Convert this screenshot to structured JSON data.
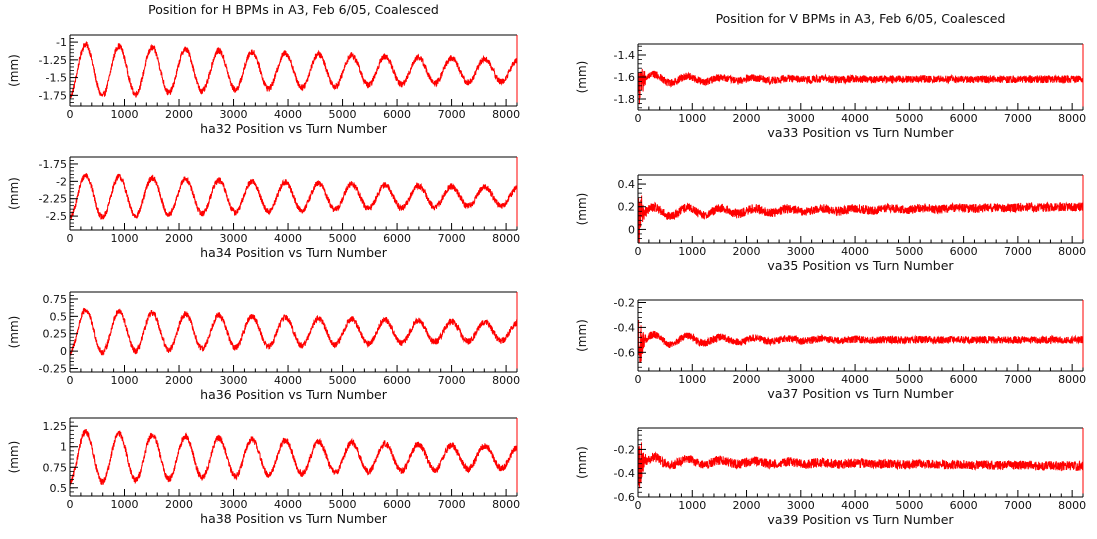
{
  "page": {
    "left_title": "Position for H BPMs in A3, Feb 6/05, Coalesced",
    "right_title": "Position for V BPMs in A3, Feb 6/05, Coalesced"
  },
  "colors": {
    "trace": "#ff0000",
    "frame": "#000000",
    "background": "#ffffff"
  },
  "chart_data": [
    {
      "type": "line",
      "column": "left",
      "row": 0,
      "xlabel": "ha32 Position vs Turn Number",
      "ylabel": "(mm)",
      "xlim": [
        0,
        8200
      ],
      "ylim": [
        -1.9,
        -0.9
      ],
      "xticks": [
        0,
        1000,
        2000,
        3000,
        4000,
        5000,
        6000,
        7000,
        8000
      ],
      "yticks": [
        -1.75,
        -1.5,
        -1.25,
        -1
      ],
      "ytick_labels": [
        "-1.75",
        "-1.5",
        "-1.25",
        "-1"
      ],
      "baseline": -1.4,
      "osc_amplitude": 0.38,
      "osc_period": 610,
      "osc_decay": 9000,
      "noise": 0.045,
      "series": [
        {
          "name": "ha32"
        }
      ]
    },
    {
      "type": "line",
      "column": "left",
      "row": 1,
      "xlabel": "ha34 Position vs Turn Number",
      "ylabel": "(mm)",
      "xlim": [
        0,
        8200
      ],
      "ylim": [
        -2.7,
        -1.65
      ],
      "xticks": [
        0,
        1000,
        2000,
        3000,
        4000,
        5000,
        6000,
        7000,
        8000
      ],
      "yticks": [
        -2.5,
        -2.25,
        -2,
        -1.75
      ],
      "ytick_labels": [
        "-2.5",
        "-2.25",
        "-2",
        "-1.75"
      ],
      "baseline": -2.22,
      "osc_amplitude": 0.32,
      "osc_period": 610,
      "osc_decay": 9000,
      "noise": 0.045,
      "series": [
        {
          "name": "ha34"
        }
      ]
    },
    {
      "type": "line",
      "column": "left",
      "row": 2,
      "xlabel": "ha36 Position vs Turn Number",
      "ylabel": "(mm)",
      "xlim": [
        0,
        8200
      ],
      "ylim": [
        -0.3,
        0.85
      ],
      "xticks": [
        0,
        1000,
        2000,
        3000,
        4000,
        5000,
        6000,
        7000,
        8000
      ],
      "yticks": [
        -0.25,
        0,
        0.25,
        0.5,
        0.75
      ],
      "ytick_labels": [
        "-0.25",
        "0",
        "0.25",
        "0.5",
        "0.75"
      ],
      "baseline": 0.28,
      "osc_amplitude": 0.32,
      "osc_period": 610,
      "osc_decay": 9000,
      "noise": 0.045,
      "series": [
        {
          "name": "ha36"
        }
      ]
    },
    {
      "type": "line",
      "column": "left",
      "row": 3,
      "xlabel": "ha38 Position vs Turn Number",
      "ylabel": "(mm)",
      "xlim": [
        0,
        8200
      ],
      "ylim": [
        0.4,
        1.35
      ],
      "xticks": [
        0,
        1000,
        2000,
        3000,
        4000,
        5000,
        6000,
        7000,
        8000
      ],
      "yticks": [
        0.5,
        0.75,
        1,
        1.25
      ],
      "ytick_labels": [
        "0.5",
        "0.75",
        "1",
        "1.25"
      ],
      "baseline": 0.87,
      "osc_amplitude": 0.32,
      "osc_period": 610,
      "osc_decay": 9000,
      "noise": 0.04,
      "series": [
        {
          "name": "ha38"
        }
      ]
    },
    {
      "type": "line",
      "column": "right",
      "row": 0,
      "xlabel": "va33 Position vs Turn Number",
      "ylabel": "(mm)",
      "xlim": [
        0,
        8200
      ],
      "ylim": [
        -1.9,
        -1.3
      ],
      "xticks": [
        0,
        1000,
        2000,
        3000,
        4000,
        5000,
        6000,
        7000,
        8000
      ],
      "yticks": [
        -1.8,
        -1.6,
        -1.4
      ],
      "ytick_labels": [
        "-1.8",
        "-1.6",
        "-1.4"
      ],
      "baseline": -1.62,
      "osc_amplitude": 0.05,
      "osc_period": 620,
      "osc_decay": 1500,
      "noise": 0.035,
      "spike": 0.22,
      "series": [
        {
          "name": "va33"
        }
      ]
    },
    {
      "type": "line",
      "column": "right",
      "row": 1,
      "xlabel": "va35 Position vs Turn Number",
      "ylabel": "(mm)",
      "xlim": [
        0,
        8200
      ],
      "ylim": [
        -0.12,
        0.48
      ],
      "xticks": [
        0,
        1000,
        2000,
        3000,
        4000,
        5000,
        6000,
        7000,
        8000
      ],
      "yticks": [
        0,
        0.2,
        0.4
      ],
      "ytick_labels": [
        "0",
        "0.2",
        "0.4"
      ],
      "baseline": 0.15,
      "trend_end": 0.2,
      "osc_amplitude": 0.05,
      "osc_period": 620,
      "osc_decay": 2500,
      "noise": 0.04,
      "spike": 0.25,
      "series": [
        {
          "name": "va35"
        }
      ]
    },
    {
      "type": "line",
      "column": "right",
      "row": 2,
      "xlabel": "va37 Position vs Turn Number",
      "ylabel": "(mm)",
      "xlim": [
        0,
        8200
      ],
      "ylim": [
        -0.75,
        -0.18
      ],
      "xticks": [
        0,
        1000,
        2000,
        3000,
        4000,
        5000,
        6000,
        7000,
        8000
      ],
      "yticks": [
        -0.6,
        -0.4,
        -0.2
      ],
      "ytick_labels": [
        "-0.6",
        "-0.4",
        "-0.2"
      ],
      "baseline": -0.5,
      "osc_amplitude": 0.05,
      "osc_period": 620,
      "osc_decay": 1800,
      "noise": 0.03,
      "spike": 0.22,
      "series": [
        {
          "name": "va37"
        }
      ]
    },
    {
      "type": "line",
      "column": "right",
      "row": 3,
      "xlabel": "va39 Position vs Turn Number",
      "ylabel": "(mm)",
      "xlim": [
        0,
        8200
      ],
      "ylim": [
        -0.6,
        -0.02
      ],
      "xticks": [
        0,
        1000,
        2000,
        3000,
        4000,
        5000,
        6000,
        7000,
        8000
      ],
      "yticks": [
        -0.6,
        -0.4,
        -0.2
      ],
      "ytick_labels": [
        "-0.6",
        "-0.4",
        "-0.2"
      ],
      "baseline": -0.3,
      "trend_end": -0.34,
      "osc_amplitude": 0.04,
      "osc_period": 620,
      "osc_decay": 2000,
      "noise": 0.04,
      "spike": 0.25,
      "series": [
        {
          "name": "va39"
        }
      ]
    }
  ]
}
